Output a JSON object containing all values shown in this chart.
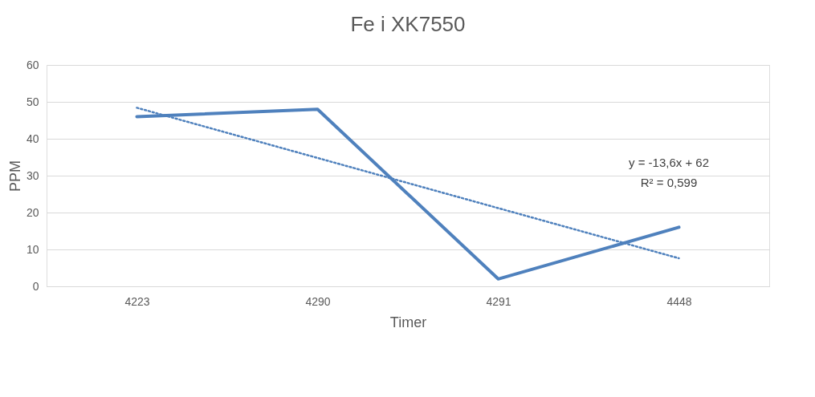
{
  "chart_data": {
    "type": "line",
    "title": "Fe i XK7550",
    "xlabel": "Timer",
    "ylabel": "PPM",
    "categories": [
      "4223",
      "4290",
      "4291",
      "4448"
    ],
    "series": [
      {
        "color": "#4f81bd",
        "values": [
          46,
          48,
          2,
          16
        ],
        "line_style": "solid"
      },
      {
        "type": "line",
        "color": "#4f81bd",
        "values": [
          48.4,
          34.8,
          21.2,
          7.6
        ],
        "line_style": "dotted"
      }
    ],
    "ylim": [
      0,
      60
    ],
    "yticks": [
      0,
      10,
      20,
      30,
      40,
      50,
      60
    ],
    "grid": "y",
    "marker": "none",
    "annotations": [
      "y = -13,6x + 62",
      "R² = 0,599"
    ]
  }
}
